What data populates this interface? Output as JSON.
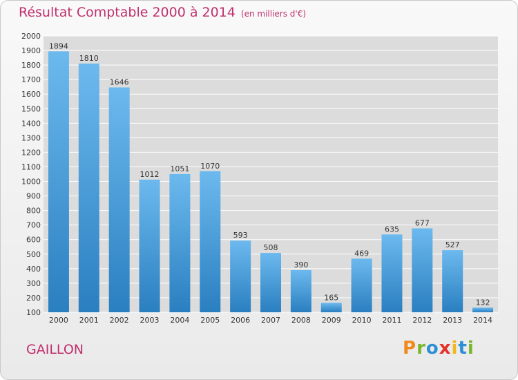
{
  "header": {
    "title": "Résultat Comptable 2000 à 2014",
    "unit": "(en milliers d'€)"
  },
  "footer": {
    "place": "GAILLON",
    "logo": [
      "P",
      "r",
      "o",
      "x",
      "i",
      "t",
      "i"
    ]
  },
  "colors": {
    "bar_light": "#6cb9ee",
    "bar_dark": "#2a7fc0",
    "title": "#c0306e",
    "grid": "#ffffff"
  },
  "chart_data": {
    "type": "bar",
    "title": "Résultat Comptable 2000 à 2014",
    "categories": [
      "2000",
      "2001",
      "2002",
      "2003",
      "2004",
      "2005",
      "2006",
      "2007",
      "2008",
      "2009",
      "2010",
      "2011",
      "2012",
      "2013",
      "2014"
    ],
    "values": [
      1894,
      1810,
      1646,
      1012,
      1051,
      1070,
      593,
      508,
      390,
      165,
      469,
      635,
      677,
      527,
      132
    ],
    "ylim": [
      100,
      2000
    ],
    "yticks": [
      100,
      200,
      300,
      400,
      500,
      600,
      700,
      800,
      900,
      1000,
      1100,
      1200,
      1300,
      1400,
      1500,
      1600,
      1700,
      1800,
      1900,
      2000
    ],
    "grid": true,
    "data_labels": true
  }
}
